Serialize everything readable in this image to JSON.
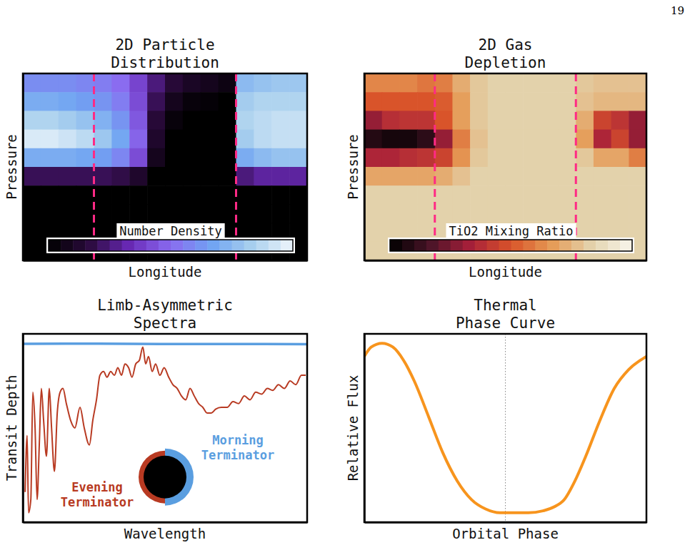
{
  "page_number": 19,
  "chart_data": [
    {
      "type": "heatmap",
      "title": "2D Particle Distribution",
      "xlabel": "Longitude",
      "ylabel": "Pressure",
      "xlim": [
        -180,
        180
      ],
      "ylim": [
        10,
        0
      ],
      "tick_labels": false,
      "x": [
        -168.75,
        -146.25,
        -123.75,
        -101.25,
        -78.75,
        -56.25,
        -33.75,
        -11.25,
        11.25,
        33.75,
        56.25,
        78.75,
        101.25,
        123.75,
        146.25,
        168.75
      ],
      "y": [
        0.5,
        1.5,
        2.5,
        3.5,
        4.5,
        5.5,
        6.5,
        7.5,
        8.5,
        9.5
      ],
      "cells": [
        [
          0.6,
          0.6,
          0.6,
          0.58,
          0.55,
          0.5,
          0.4,
          0.25,
          0.15,
          0.1,
          0.08,
          0.05,
          0.75,
          0.78,
          0.8,
          0.8
        ],
        [
          0.7,
          0.7,
          0.68,
          0.65,
          0.62,
          0.55,
          0.42,
          0.2,
          0.08,
          0.03,
          0.02,
          0,
          0.82,
          0.85,
          0.85,
          0.85
        ],
        [
          0.85,
          0.85,
          0.82,
          0.78,
          0.72,
          0.62,
          0.45,
          0.15,
          0.03,
          0,
          0,
          0,
          0.85,
          0.88,
          0.9,
          0.9
        ],
        [
          0.95,
          0.95,
          0.92,
          0.88,
          0.8,
          0.68,
          0.48,
          0.12,
          0,
          0,
          0,
          0,
          0.82,
          0.88,
          0.9,
          0.9
        ],
        [
          0.7,
          0.7,
          0.7,
          0.68,
          0.65,
          0.58,
          0.42,
          0.08,
          0,
          0,
          0,
          0,
          0.7,
          0.75,
          0.78,
          0.78
        ],
        [
          0.2,
          0.2,
          0.2,
          0.2,
          0.2,
          0.18,
          0.12,
          0,
          0,
          0,
          0,
          0,
          0.25,
          0.3,
          0.3,
          0.3
        ],
        [
          0,
          0,
          0,
          0,
          0,
          0,
          0,
          0,
          0,
          0,
          0,
          0,
          0,
          0,
          0,
          0
        ],
        [
          0,
          0,
          0,
          0,
          0,
          0,
          0,
          0,
          0,
          0,
          0,
          0,
          0,
          0,
          0,
          0
        ],
        [
          0,
          0,
          0,
          0,
          0,
          0,
          0,
          0,
          0,
          0,
          0,
          0,
          0,
          0,
          0,
          0
        ],
        [
          0,
          0,
          0,
          0,
          0,
          0,
          0,
          0,
          0,
          0,
          0,
          0,
          0,
          0,
          0,
          0
        ]
      ],
      "colorbar": {
        "label": "Number Density",
        "range": [
          0,
          1
        ]
      },
      "vlines": [
        -90,
        90
      ]
    },
    {
      "type": "heatmap",
      "title": "2D Gas Depletion",
      "xlabel": "Longitude",
      "ylabel": "Pressure",
      "xlim": [
        -180,
        180
      ],
      "ylim": [
        10,
        0
      ],
      "tick_labels": false,
      "x": [
        -168.75,
        -146.25,
        -123.75,
        -101.25,
        -78.75,
        -56.25,
        -33.75,
        -11.25,
        11.25,
        33.75,
        56.25,
        78.75,
        101.25,
        123.75,
        146.25,
        168.75
      ],
      "y": [
        0.5,
        1.5,
        2.5,
        3.5,
        4.5,
        5.5,
        6.5,
        7.5,
        8.5,
        9.5
      ],
      "cells": [
        [
          0.62,
          0.62,
          0.62,
          0.58,
          0.6,
          0.72,
          0.8,
          0.83,
          0.83,
          0.83,
          0.83,
          0.83,
          0.8,
          0.78,
          0.78,
          0.78
        ],
        [
          0.5,
          0.5,
          0.5,
          0.5,
          0.52,
          0.68,
          0.8,
          0.83,
          0.83,
          0.83,
          0.83,
          0.83,
          0.78,
          0.75,
          0.75,
          0.75
        ],
        [
          0.3,
          0.38,
          0.4,
          0.4,
          0.5,
          0.68,
          0.8,
          0.83,
          0.83,
          0.83,
          0.83,
          0.83,
          0.72,
          0.45,
          0.4,
          0.3
        ],
        [
          0.08,
          0.05,
          0.05,
          0.1,
          0.3,
          0.6,
          0.78,
          0.83,
          0.83,
          0.83,
          0.83,
          0.83,
          0.68,
          0.35,
          0.45,
          0.3
        ],
        [
          0.35,
          0.35,
          0.38,
          0.4,
          0.45,
          0.65,
          0.8,
          0.83,
          0.83,
          0.83,
          0.83,
          0.83,
          0.8,
          0.7,
          0.7,
          0.6
        ],
        [
          0.7,
          0.7,
          0.7,
          0.7,
          0.72,
          0.78,
          0.83,
          0.83,
          0.83,
          0.83,
          0.83,
          0.83,
          0.83,
          0.83,
          0.83,
          0.83
        ],
        [
          0.83,
          0.83,
          0.83,
          0.83,
          0.83,
          0.83,
          0.83,
          0.83,
          0.83,
          0.83,
          0.83,
          0.83,
          0.83,
          0.83,
          0.83,
          0.83
        ],
        [
          0.83,
          0.83,
          0.83,
          0.83,
          0.83,
          0.83,
          0.83,
          0.83,
          0.83,
          0.83,
          0.83,
          0.83,
          0.83,
          0.83,
          0.83,
          0.83
        ],
        [
          0.83,
          0.83,
          0.83,
          0.83,
          0.83,
          0.83,
          0.83,
          0.83,
          0.83,
          0.83,
          0.83,
          0.83,
          0.83,
          0.83,
          0.83,
          0.83
        ],
        [
          0.83,
          0.83,
          0.83,
          0.83,
          0.83,
          0.83,
          0.83,
          0.83,
          0.83,
          0.83,
          0.83,
          0.83,
          0.83,
          0.83,
          0.83,
          0.83
        ]
      ],
      "colorbar": {
        "label": "TiO2 Mixing Ratio",
        "range": [
          0,
          1
        ]
      },
      "vlines": [
        -90,
        90
      ]
    },
    {
      "type": "line",
      "title": "Limb-Asymmetric Spectra",
      "xlabel": "Wavelength",
      "ylabel": "Transit Depth",
      "xlim": [
        0,
        100
      ],
      "ylim": [
        0,
        1
      ],
      "tick_labels": false,
      "legend": "lower center",
      "series": [
        {
          "name": "Evening Terminator",
          "color": "#b83a22",
          "x": [
            0.8,
            1.5,
            2.0,
            2.8,
            3.5,
            4.3,
            5.0,
            5.8,
            6.5,
            7.3,
            8.3,
            9.3,
            10.1,
            11.1,
            12.1,
            13.1,
            14.1,
            15.3,
            16.8,
            18.3,
            20.1,
            21.6,
            23.4,
            24.6,
            25.9,
            27.1,
            28.4,
            29.6,
            30.9,
            32.2,
            33.4,
            34.7,
            35.9,
            37.2,
            38.4,
            39.7,
            41.0,
            42.2,
            43.2,
            44.2,
            45.5,
            46.7,
            48.2,
            49.7,
            51.3,
            52.8,
            54.3,
            55.8,
            57.3,
            58.8,
            60.3,
            61.8,
            63.3,
            64.8,
            66.3,
            67.8,
            69.8,
            71.9,
            73.9,
            75.9,
            77.9,
            79.9,
            81.9,
            84.0,
            86.0,
            87.9,
            89.9,
            92.0,
            94.0,
            96.0,
            98.0,
            99.5
          ],
          "values": [
            0.16,
            0.46,
            0.05,
            0.12,
            0.69,
            0.5,
            0.12,
            0.42,
            0.71,
            0.54,
            0.35,
            0.71,
            0.5,
            0.27,
            0.58,
            0.69,
            0.71,
            0.63,
            0.54,
            0.5,
            0.61,
            0.5,
            0.41,
            0.54,
            0.65,
            0.78,
            0.8,
            0.77,
            0.8,
            0.78,
            0.82,
            0.78,
            0.84,
            0.82,
            0.77,
            0.84,
            0.86,
            0.93,
            0.84,
            0.88,
            0.8,
            0.84,
            0.78,
            0.82,
            0.77,
            0.73,
            0.71,
            0.67,
            0.65,
            0.71,
            0.67,
            0.63,
            0.61,
            0.58,
            0.58,
            0.6,
            0.61,
            0.61,
            0.64,
            0.63,
            0.67,
            0.65,
            0.69,
            0.68,
            0.71,
            0.7,
            0.73,
            0.71,
            0.75,
            0.73,
            0.78,
            0.78
          ]
        },
        {
          "name": "Morning Terminator",
          "color": "#5a9ee0",
          "x": [
            0,
            25,
            50,
            75,
            100
          ],
          "values": [
            0.947,
            0.948,
            0.946,
            0.946,
            0.945
          ]
        }
      ]
    },
    {
      "type": "line",
      "title": "Thermal Phase Curve",
      "xlabel": "Orbital Phase",
      "ylabel": "Relative Flux",
      "xlim": [
        0,
        1
      ],
      "ylim": [
        0,
        1
      ],
      "tick_labels": false,
      "color": "#f7941d",
      "x": [
        0,
        0.025,
        0.063,
        0.101,
        0.139,
        0.177,
        0.228,
        0.278,
        0.329,
        0.38,
        0.43,
        0.481,
        0.532,
        0.582,
        0.633,
        0.671,
        0.709,
        0.747,
        0.785,
        0.835,
        0.886,
        0.937,
        1
      ],
      "values": [
        0.88,
        0.93,
        0.95,
        0.93,
        0.86,
        0.75,
        0.56,
        0.37,
        0.22,
        0.12,
        0.07,
        0.05,
        0.05,
        0.05,
        0.06,
        0.08,
        0.12,
        0.22,
        0.35,
        0.54,
        0.71,
        0.81,
        0.88
      ],
      "vlines": [
        0.5
      ]
    }
  ]
}
